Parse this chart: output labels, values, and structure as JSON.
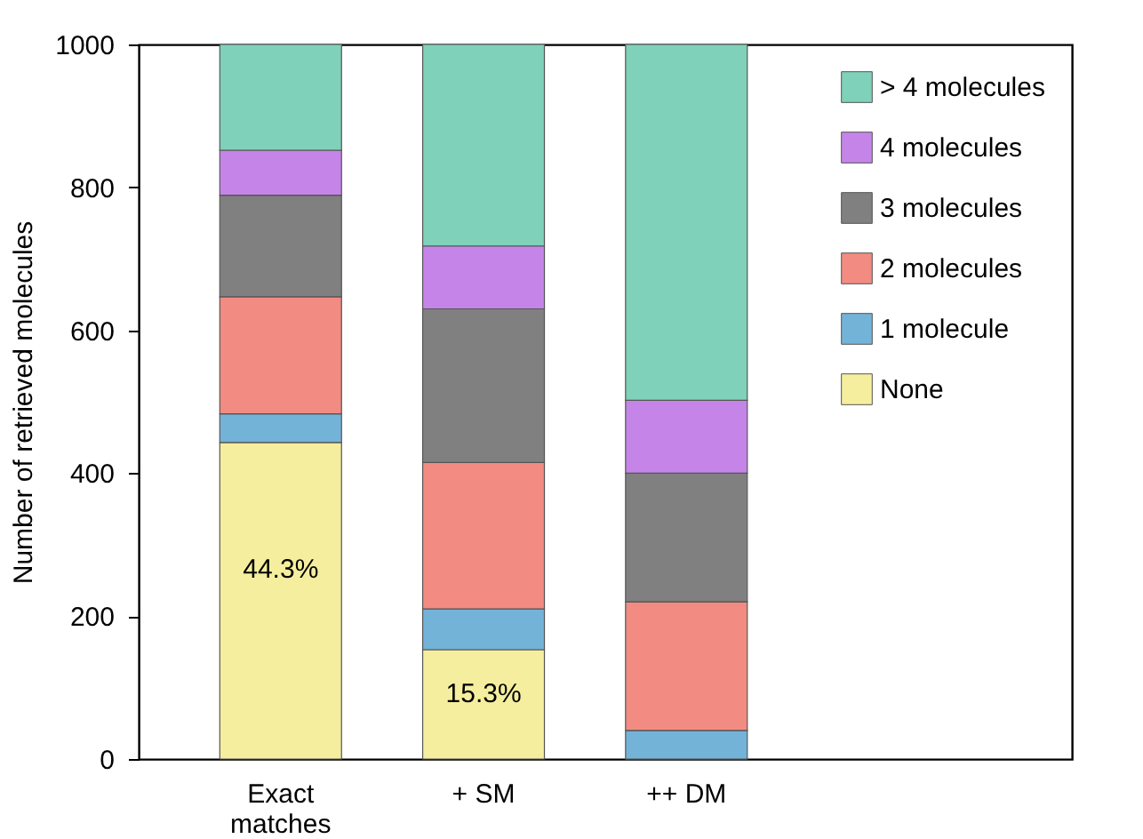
{
  "chart_data": {
    "type": "bar",
    "stacked": true,
    "ylabel": "Number of retrieved molecules",
    "categories": [
      "Exact matches",
      "+ SM",
      "++ DM"
    ],
    "series": [
      {
        "name": "None",
        "color": "#f5ee9e",
        "values": [
          443,
          153,
          0
        ]
      },
      {
        "name": "1 molecule",
        "color": "#74b3d8",
        "values": [
          40,
          57,
          40
        ]
      },
      {
        "name": "2 molecules",
        "color": "#f28b82",
        "values": [
          164,
          205,
          180
        ]
      },
      {
        "name": "3 molecules",
        "color": "#808080",
        "values": [
          142,
          215,
          180
        ]
      },
      {
        "name": "4 molecules",
        "color": "#c585e8",
        "values": [
          63,
          88,
          102
        ]
      },
      {
        "name": "> 4 molecules",
        "color": "#7fd1b9",
        "values": [
          148,
          282,
          498
        ]
      }
    ],
    "annotations": [
      "44.3%",
      "15.3%"
    ],
    "ylim": [
      0,
      1000
    ],
    "yticks": [
      0,
      200,
      400,
      600,
      800,
      1000
    ],
    "grid": false,
    "legend": "top right"
  }
}
